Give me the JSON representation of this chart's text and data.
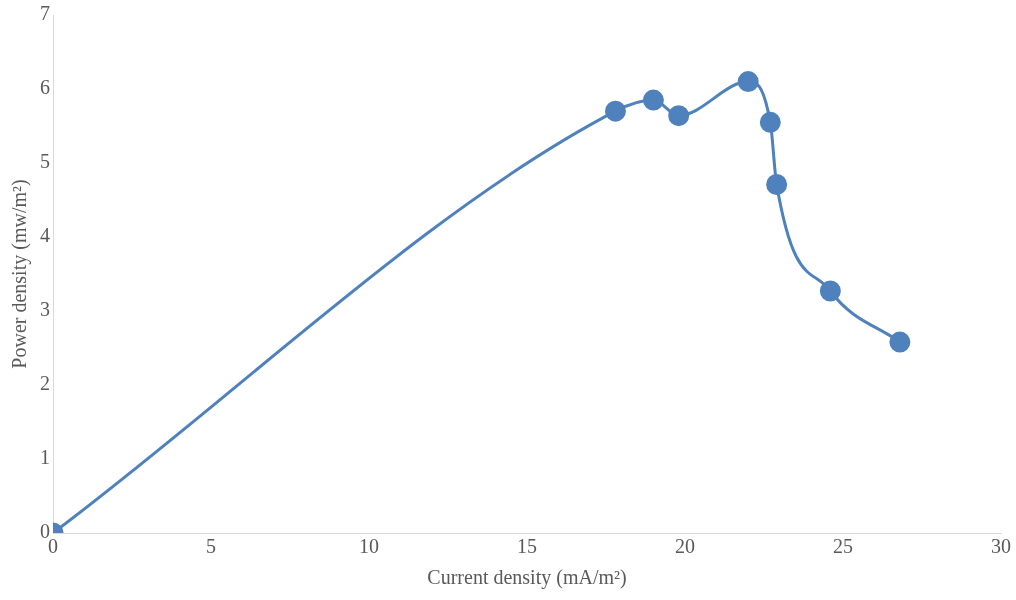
{
  "chart_data": {
    "type": "line",
    "xlabel": "Current density (mA/m²)",
    "ylabel": "Power density (mw/m²)",
    "x": [
      0,
      17.8,
      19.0,
      19.8,
      22.0,
      22.7,
      22.9,
      24.6,
      26.8
    ],
    "series": [
      {
        "color": "#4f81bd",
        "values": [
          0,
          5.7,
          5.85,
          5.64,
          6.1,
          5.55,
          4.71,
          3.27,
          2.58
        ]
      }
    ],
    "xlim": [
      0,
      30
    ],
    "xticks": [
      0,
      5,
      10,
      15,
      20,
      25,
      30
    ],
    "ylim": [
      0,
      7
    ],
    "yticks": [
      0,
      1,
      2,
      3,
      4,
      5,
      6,
      7
    ],
    "grid": false,
    "legend": false,
    "marker": "circle",
    "line_style": "solid"
  }
}
